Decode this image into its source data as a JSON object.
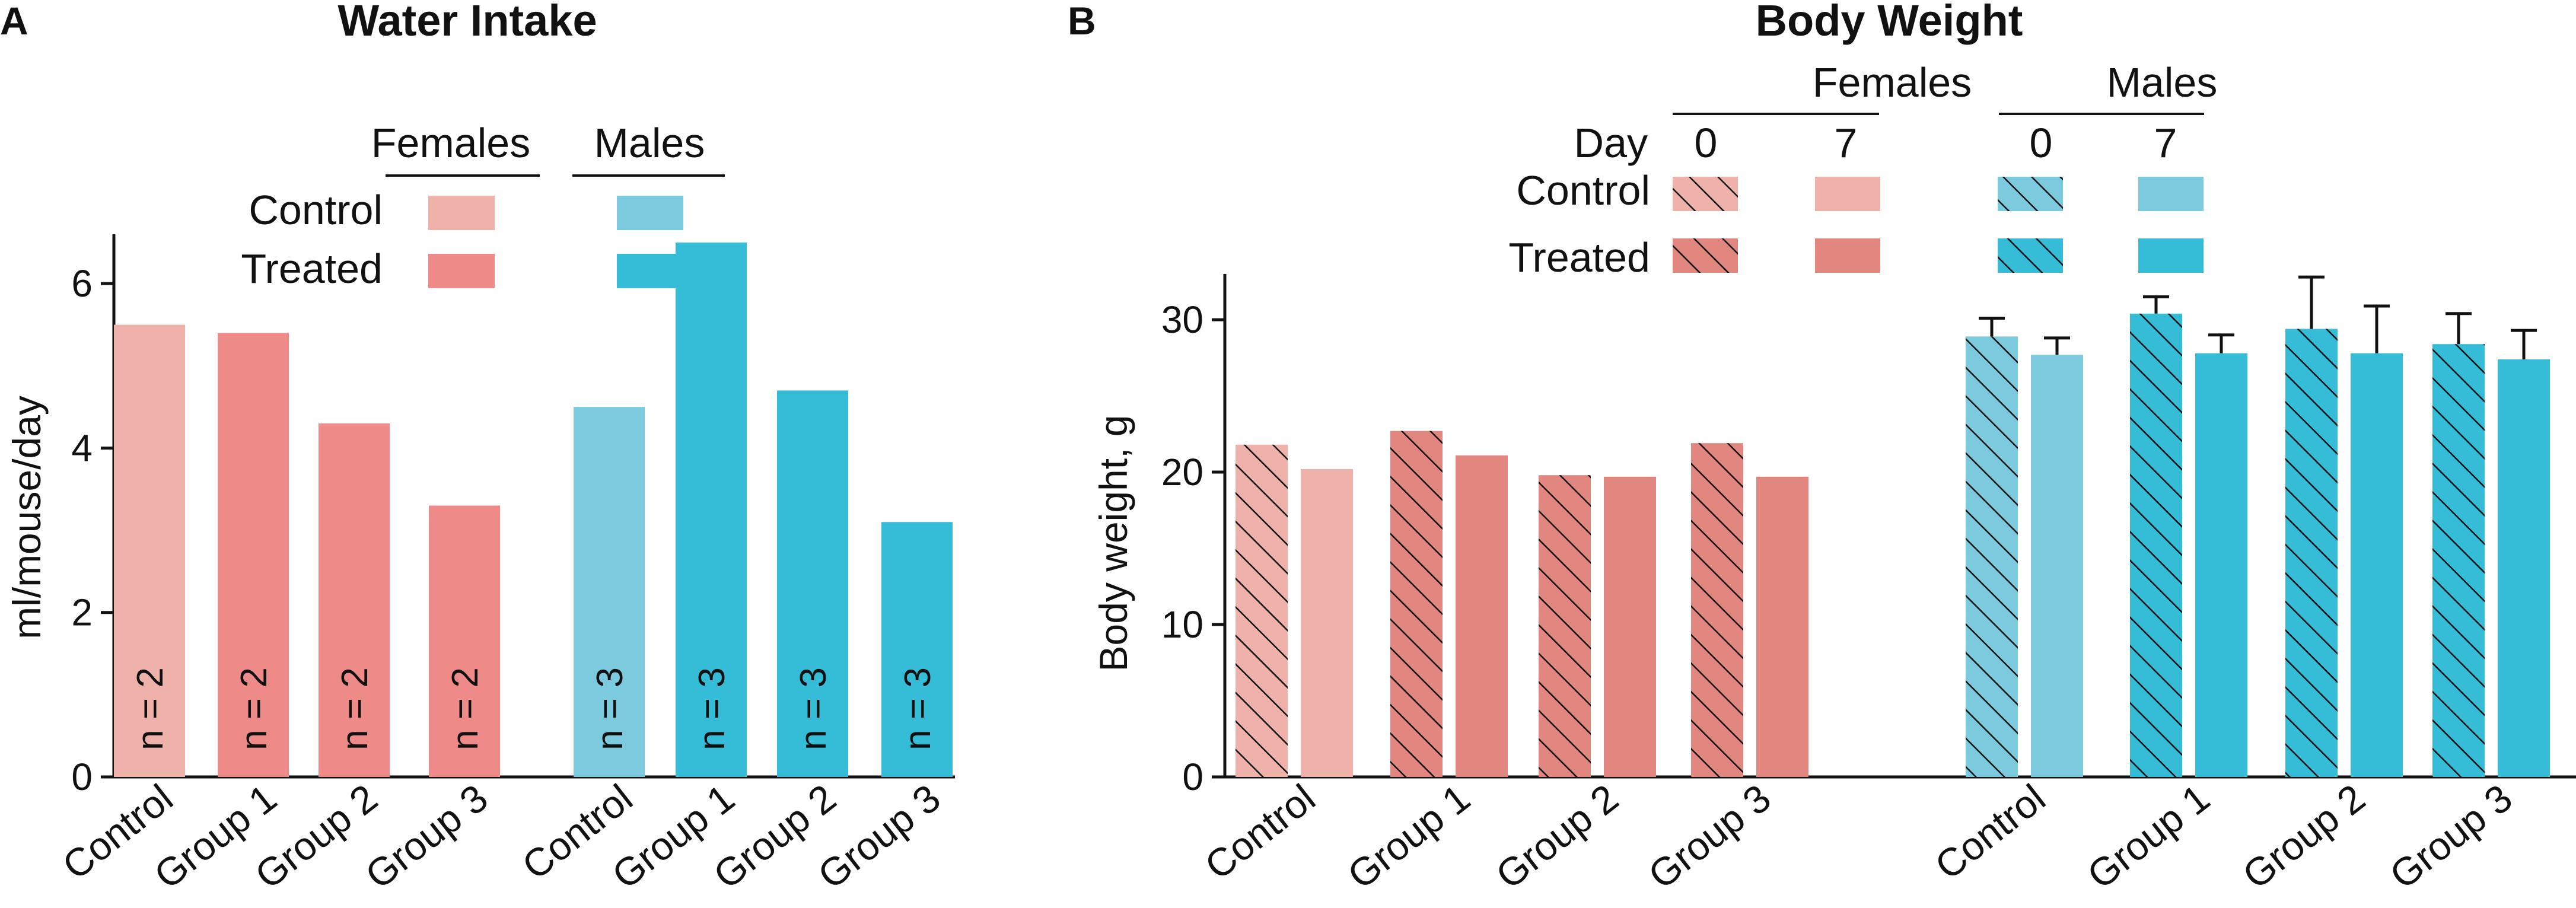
{
  "panels": {
    "a_letter": "A",
    "b_letter": "B"
  },
  "colors": {
    "female_control": "#eeb2ab",
    "female_treated": "#ee8a88",
    "female_treated_b": "#e28780",
    "male_control": "#7bcadd",
    "male_treated": "#35bcd6"
  },
  "chart_data": [
    {
      "type": "bar",
      "title": "Water Intake",
      "xlabel": "",
      "ylabel": "ml/mouse/day",
      "ylim": [
        0,
        6.6
      ],
      "yticks": [
        "0",
        "2",
        "4",
        "6"
      ],
      "categories": [
        "Control",
        "Group 1",
        "Group 2",
        "Group 3",
        "Control",
        "Group 1",
        "Group 2",
        "Group 3"
      ],
      "groups": [
        "Females",
        "Females",
        "Females",
        "Females",
        "Males",
        "Males",
        "Males",
        "Males"
      ],
      "values": [
        5.5,
        5.4,
        4.3,
        3.3,
        4.5,
        6.5,
        4.7,
        3.1
      ],
      "n_labels": [
        "n = 2",
        "n = 2",
        "n = 2",
        "n = 2",
        "n = 3",
        "n = 3",
        "n = 3",
        "n = 3"
      ],
      "legend": {
        "columns": [
          "Females",
          "Males"
        ],
        "rows": [
          "Control",
          "Treated"
        ]
      }
    },
    {
      "type": "bar",
      "title": "Body Weight",
      "xlabel": "",
      "ylabel": "Body weight, g",
      "ylim": [
        0,
        33
      ],
      "yticks": [
        "0",
        "10",
        "20",
        "30"
      ],
      "categories": [
        "Control",
        "Group 1",
        "Group 2",
        "Group 3",
        "Control",
        "Group 1",
        "Group 2",
        "Group 3"
      ],
      "groups": [
        "Females",
        "Females",
        "Females",
        "Females",
        "Males",
        "Males",
        "Males",
        "Males"
      ],
      "series": [
        {
          "name": "Day 0",
          "values": [
            21.8,
            22.7,
            19.8,
            21.9,
            28.9,
            30.4,
            29.4,
            28.4
          ],
          "errors": [
            0,
            0,
            0,
            0,
            1.2,
            1.1,
            3.4,
            2.0
          ]
        },
        {
          "name": "Day 7",
          "values": [
            20.2,
            21.1,
            19.7,
            19.7,
            27.7,
            27.8,
            27.8,
            27.4
          ],
          "errors": [
            0,
            0,
            0,
            0,
            1.1,
            1.2,
            3.1,
            1.9
          ]
        }
      ],
      "legend": {
        "columns": [
          "Females",
          "Males"
        ],
        "day_label": "Day",
        "days": [
          "0",
          "7",
          "0",
          "7"
        ],
        "rows": [
          "Control",
          "Treated"
        ]
      }
    }
  ]
}
